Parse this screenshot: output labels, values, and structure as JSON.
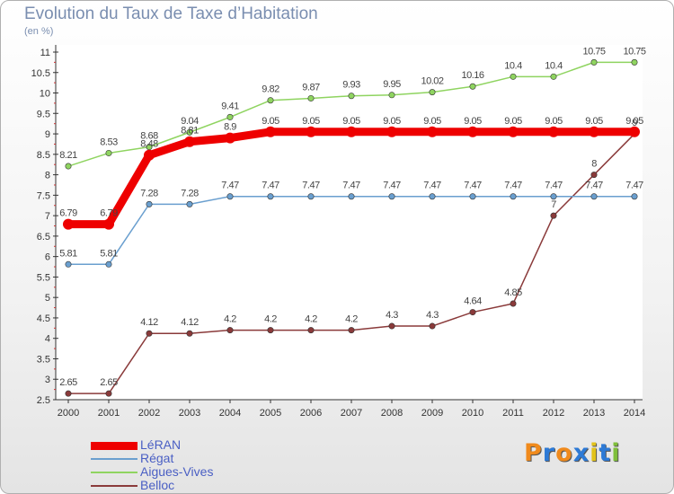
{
  "header": {
    "title": "Evolution du Taux de Taxe d’Habitation",
    "subtitle": "(en %)"
  },
  "logo": {
    "letters": [
      "P",
      "r",
      "o",
      "x",
      "i",
      "t",
      "i"
    ],
    "colors": [
      "#f08a1c",
      "#2d7ad6",
      "#f08a1c",
      "#2d7ad6",
      "#e2c21a",
      "#2d7ad6",
      "#7fbf3a"
    ]
  },
  "chart_data": {
    "type": "line",
    "x": [
      "2000",
      "2001",
      "2002",
      "2003",
      "2004",
      "2005",
      "2006",
      "2007",
      "2008",
      "2009",
      "2010",
      "2011",
      "2012",
      "2013",
      "2014"
    ],
    "ylim": [
      2.5,
      11
    ],
    "yticks": [
      "2.5",
      "3",
      "3.5",
      "4",
      "4.5",
      "5",
      "5.5",
      "6",
      "6.5",
      "7",
      "7.5",
      "8",
      "8.5",
      "9",
      "9.5",
      "10",
      "10.5",
      "11"
    ],
    "grid": false,
    "legend": "bottom-left",
    "series": [
      {
        "name": "LéRAN",
        "color": "#ee0000",
        "values": [
          6.79,
          6.79,
          8.48,
          8.81,
          8.9,
          9.05,
          9.05,
          9.05,
          9.05,
          9.05,
          9.05,
          9.05,
          9.05,
          9.05,
          9.05
        ],
        "labels": [
          "6.79",
          "6.79",
          "8.48",
          "8.81",
          "8.9",
          "9.05",
          "9.05",
          "9.05",
          "9.05",
          "9.05",
          "9.05",
          "9.05",
          "9.05",
          "9.05",
          "9.05"
        ]
      },
      {
        "name": "Régat",
        "color": "#6a9fcf",
        "values": [
          5.81,
          5.81,
          7.28,
          7.28,
          7.47,
          7.47,
          7.47,
          7.47,
          7.47,
          7.47,
          7.47,
          7.47,
          7.47,
          7.47,
          7.47
        ],
        "labels": [
          "5.81",
          "5.81",
          "7.28",
          "7.28",
          "7.47",
          "7.47",
          "7.47",
          "7.47",
          "7.47",
          "7.47",
          "7.47",
          "7.47",
          "7.47",
          "7.47",
          "7.47"
        ]
      },
      {
        "name": "Aigues-Vives",
        "color": "#8fd460",
        "values": [
          8.21,
          8.53,
          8.68,
          9.04,
          9.41,
          9.82,
          9.87,
          9.93,
          9.95,
          10.02,
          10.16,
          10.4,
          10.4,
          10.75,
          10.75
        ],
        "labels": [
          "8.21",
          "8.53",
          "8.68",
          "9.04",
          "9.41",
          "9.82",
          "9.87",
          "9.93",
          "9.95",
          "10.02",
          "10.16",
          "10.4",
          "10.4",
          "10.75",
          "10.75"
        ]
      },
      {
        "name": "Belloc",
        "color": "#8a3a3a",
        "values": [
          2.65,
          2.65,
          4.12,
          4.12,
          4.2,
          4.2,
          4.2,
          4.2,
          4.3,
          4.3,
          4.64,
          4.85,
          7,
          8,
          9
        ],
        "labels": [
          "2.65",
          "2.65",
          "4.12",
          "4.12",
          "4.2",
          "4.2",
          "4.2",
          "4.2",
          "4.3",
          "4.3",
          "4.64",
          "4.85",
          "7",
          "8",
          "9"
        ]
      }
    ]
  }
}
